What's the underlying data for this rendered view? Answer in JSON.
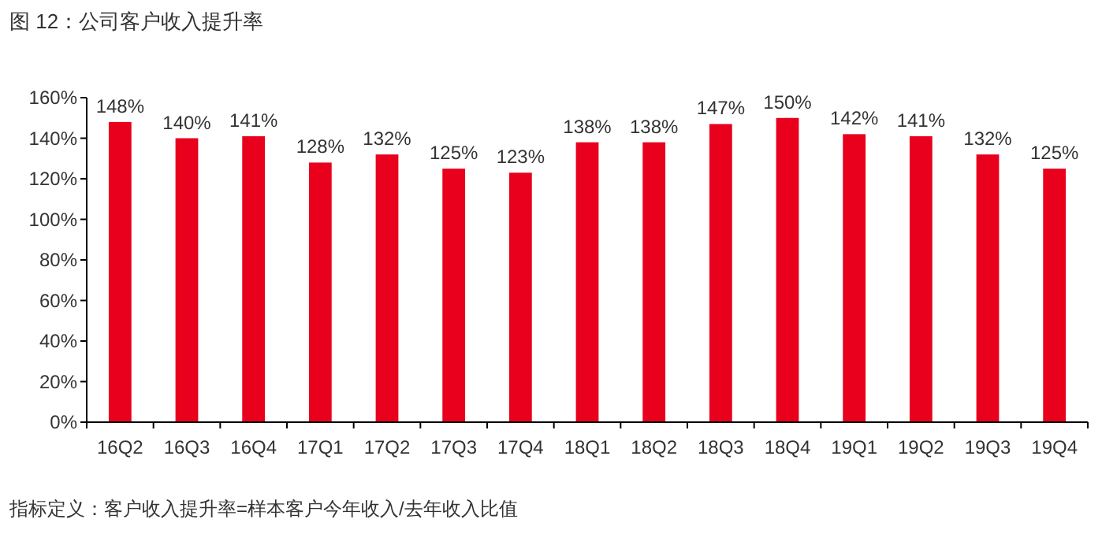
{
  "chart_data": {
    "type": "bar",
    "title": "图 12：公司客户收入提升率",
    "categories": [
      "16Q2",
      "16Q3",
      "16Q4",
      "17Q1",
      "17Q2",
      "17Q3",
      "17Q4",
      "18Q1",
      "18Q2",
      "18Q3",
      "18Q4",
      "19Q1",
      "19Q2",
      "19Q3",
      "19Q4"
    ],
    "values": [
      148,
      140,
      141,
      128,
      132,
      125,
      123,
      138,
      138,
      147,
      150,
      142,
      141,
      132,
      125
    ],
    "value_labels": [
      "148%",
      "140%",
      "141%",
      "128%",
      "132%",
      "125%",
      "123%",
      "138%",
      "138%",
      "147%",
      "150%",
      "142%",
      "141%",
      "132%",
      "125%"
    ],
    "color": "#e8001c",
    "ylim": [
      0,
      160
    ],
    "yticks": [
      {
        "value": 0,
        "label": "0%"
      },
      {
        "value": 20,
        "label": "20%"
      },
      {
        "value": 40,
        "label": "40%"
      },
      {
        "value": 60,
        "label": "60%"
      },
      {
        "value": 80,
        "label": "80%"
      },
      {
        "value": 100,
        "label": "100%"
      },
      {
        "value": 120,
        "label": "120%"
      },
      {
        "value": 140,
        "label": "140%"
      },
      {
        "value": 160,
        "label": "160%"
      }
    ],
    "grid": false,
    "annotations": [
      "指标定义：客户收入提升率=样本客户今年收入/去年收入比值"
    ]
  }
}
